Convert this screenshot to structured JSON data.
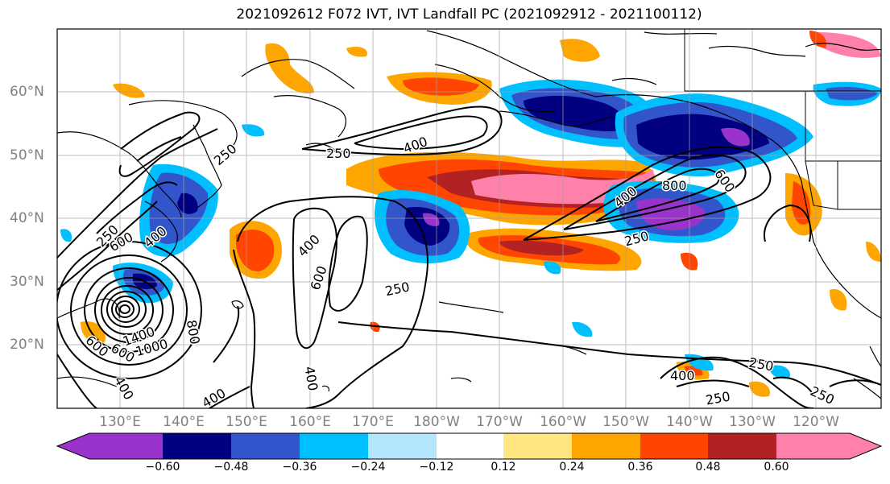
{
  "title": "2021092612 F072 IVT, IVT Landfall PC (2021092912 - 2021100112)",
  "lat_labels": [
    "60°N",
    "50°N",
    "40°N",
    "30°N",
    "20°N"
  ],
  "lon_labels": [
    "130°E",
    "140°E",
    "150°E",
    "160°E",
    "170°E",
    "180°W",
    "170°W",
    "160°W",
    "150°W",
    "140°W",
    "130°W",
    "120°W"
  ],
  "colorbar": {
    "colors": [
      "#9933cc",
      "#000080",
      "#3355cc",
      "#00bfff",
      "#b3e5fc",
      "#ffffff",
      "#ffe680",
      "#ffa500",
      "#ff4500",
      "#b22222",
      "#ff80a8"
    ],
    "ticks": [
      "−0.60",
      "−0.48",
      "−0.36",
      "−0.24",
      "−0.12",
      "0.12",
      "0.24",
      "0.36",
      "0.48",
      "0.60"
    ]
  },
  "contour_labels": [
    "250",
    "400",
    "400",
    "250",
    "800",
    "600",
    "250",
    "400",
    "600",
    "250",
    "250",
    "600",
    "400",
    "600",
    "1400",
    "1000",
    "600",
    "800",
    "400",
    "400",
    "400",
    "250",
    "400",
    "250",
    "250"
  ]
}
